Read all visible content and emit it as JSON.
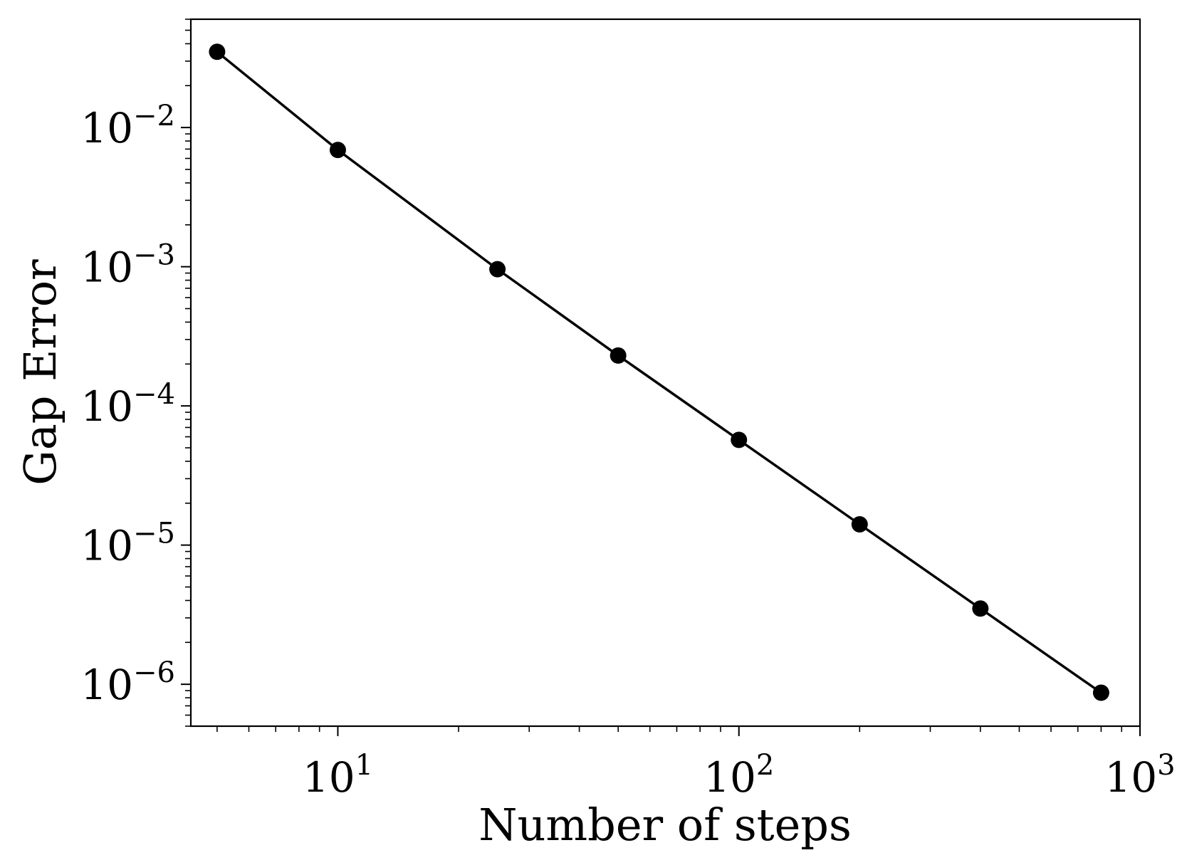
{
  "chart_data": {
    "type": "line",
    "xlabel": "Number of steps",
    "ylabel": "Gap Error",
    "xscale": "log",
    "yscale": "log",
    "xlim": [
      4.3,
      1000
    ],
    "ylim": [
      5e-07,
      0.06
    ],
    "grid": false,
    "x_ticks": [
      {
        "value": 10,
        "base": "10",
        "exp": "1"
      },
      {
        "value": 100,
        "base": "10",
        "exp": "2"
      },
      {
        "value": 1000,
        "base": "10",
        "exp": "3"
      }
    ],
    "y_ticks": [
      {
        "value": 0.01,
        "base": "10",
        "exp": "−2"
      },
      {
        "value": 0.001,
        "base": "10",
        "exp": "−3"
      },
      {
        "value": 0.0001,
        "base": "10",
        "exp": "−4"
      },
      {
        "value": 1e-05,
        "base": "10",
        "exp": "−5"
      },
      {
        "value": 1e-06,
        "base": "10",
        "exp": "−6"
      }
    ],
    "series": [
      {
        "color": "#000000",
        "marker": "circle",
        "x": [
          5,
          10,
          25,
          50,
          100,
          200,
          400,
          800
        ],
        "y": [
          0.035,
          0.0069,
          0.00096,
          0.00023,
          5.7e-05,
          1.41e-05,
          3.5e-06,
          8.7e-07
        ]
      }
    ]
  }
}
